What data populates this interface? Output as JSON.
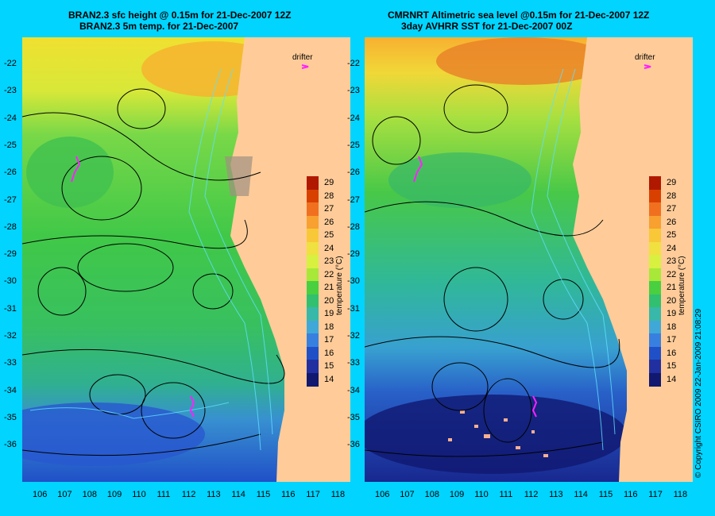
{
  "left_panel": {
    "title_line1": "BRAN2.3 sfc height @ 0.15m for 21-Dec-2007 12Z",
    "title_line2": "BRAN2.3 5m temp. for 21-Dec-2007"
  },
  "right_panel": {
    "title_line1": "CMRNRT Altimetric sea level  @0.15m  for 21-Dec-2007 12Z",
    "title_line2": "3day AVHRR SST for 21-Dec-2007 00Z"
  },
  "drifter_label": "drifter",
  "lat_ticks": [
    "-22",
    "-23",
    "-24",
    "-25",
    "-26",
    "-27",
    "-28",
    "-29",
    "-30",
    "-31",
    "-32",
    "-33",
    "-34",
    "-35",
    "-36"
  ],
  "lon_ticks": [
    "106",
    "107",
    "108",
    "109",
    "110",
    "111",
    "112",
    "113",
    "114",
    "115",
    "116",
    "117",
    "118"
  ],
  "colorbar": {
    "title": "temperature (°C)",
    "levels": [
      "29",
      "28",
      "27",
      "26",
      "25",
      "24",
      "23",
      "22",
      "21",
      "20",
      "19",
      "18",
      "17",
      "16",
      "15",
      "14"
    ],
    "colors": [
      "#b01800",
      "#d84000",
      "#f07020",
      "#f8a030",
      "#f8c838",
      "#f0e040",
      "#d8f040",
      "#a8e838",
      "#48d040",
      "#30c070",
      "#38b8a8",
      "#40a8d8",
      "#3880e0",
      "#2050c8",
      "#2030a0",
      "#101870"
    ]
  },
  "copyright": "© Copyright CSIRO 2009   22-Jan-2009 21:08:29"
}
